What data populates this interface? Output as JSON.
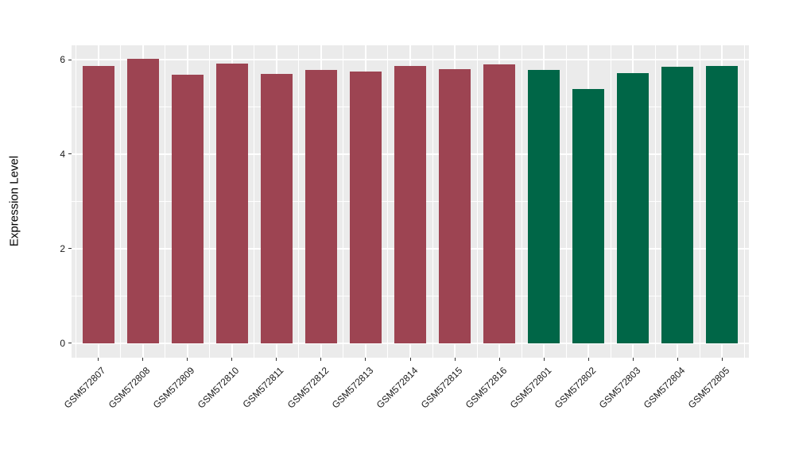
{
  "chart_data": {
    "type": "bar",
    "title": "",
    "xlabel": "",
    "ylabel": "Expression Level",
    "categories": [
      "GSM572807",
      "GSM572808",
      "GSM572809",
      "GSM572810",
      "GSM572811",
      "GSM572812",
      "GSM572813",
      "GSM572814",
      "GSM572815",
      "GSM572816",
      "GSM572801",
      "GSM572802",
      "GSM572803",
      "GSM572804",
      "GSM572805"
    ],
    "values": [
      5.87,
      6.02,
      5.68,
      5.92,
      5.7,
      5.78,
      5.75,
      5.87,
      5.8,
      5.9,
      5.78,
      5.38,
      5.71,
      5.85,
      5.87
    ],
    "bar_colors": [
      "#9D4452",
      "#9D4452",
      "#9D4452",
      "#9D4452",
      "#9D4452",
      "#9D4452",
      "#9D4452",
      "#9D4452",
      "#9D4452",
      "#9D4452",
      "#006647",
      "#006647",
      "#006647",
      "#006647",
      "#006647"
    ],
    "groups": [
      {
        "name": "maroon-group",
        "color": "#9D4452",
        "members": [
          "GSM572807",
          "GSM572808",
          "GSM572809",
          "GSM572810",
          "GSM572811",
          "GSM572812",
          "GSM572813",
          "GSM572814",
          "GSM572815",
          "GSM572816"
        ]
      },
      {
        "name": "green-group",
        "color": "#006647",
        "members": [
          "GSM572801",
          "GSM572802",
          "GSM572803",
          "GSM572804",
          "GSM572805"
        ]
      }
    ],
    "ylim": [
      0,
      6.32
    ],
    "yticks": [
      0,
      2,
      4,
      6
    ],
    "ytick_labels": [
      "0",
      "2",
      "4",
      "6"
    ],
    "yticks_minor": [
      1,
      3,
      5
    ],
    "grid": "on",
    "legend": "none",
    "panel_bg": "#EBEBEB",
    "grid_color": "#FFFFFF",
    "tick_color": "#333333",
    "x_label_angle_deg": 45
  }
}
